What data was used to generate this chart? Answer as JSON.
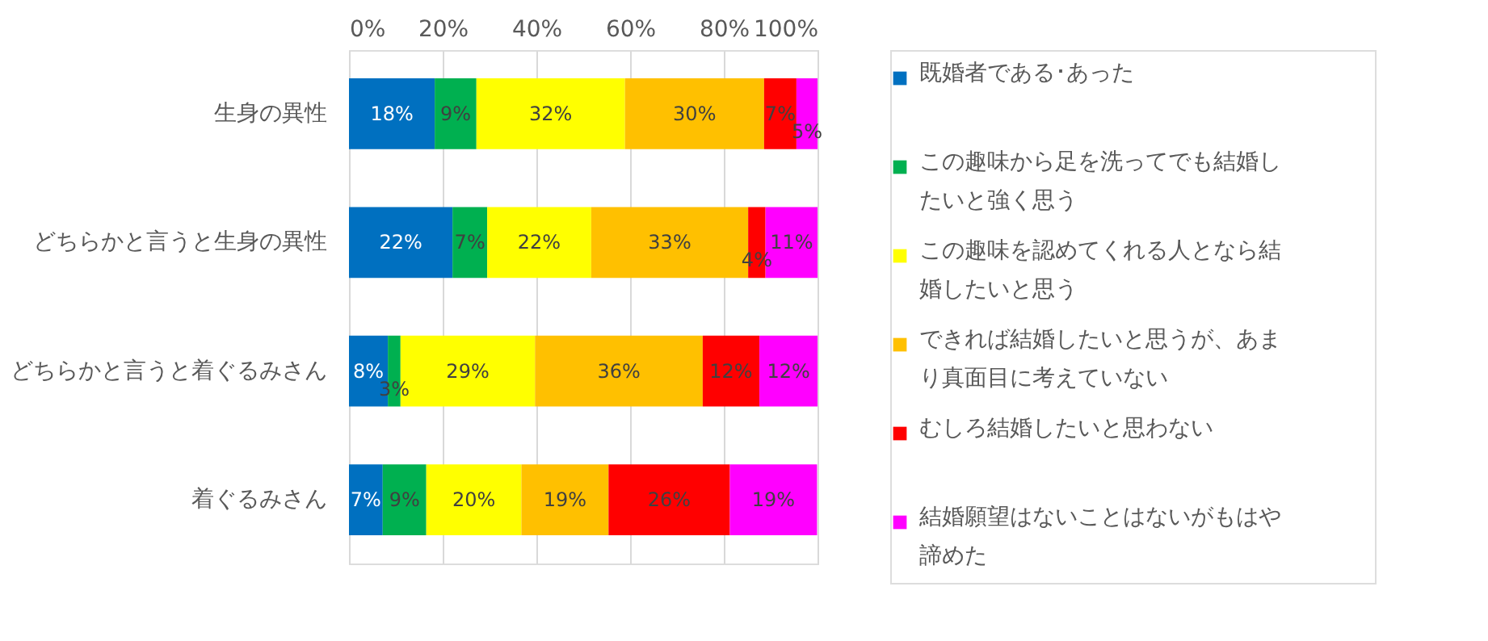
{
  "chart_data": {
    "type": "bar",
    "orientation": "horizontal",
    "stacked": true,
    "categories": [
      "生身の異性",
      "どちらかと言うと生身の異性",
      "どちらかと言うと着ぐるみさん",
      "着ぐるみさん"
    ],
    "series": [
      {
        "name": "既婚者である･あった",
        "color": "#0070c0",
        "values": [
          18.3,
          22.1,
          8.3,
          7.2
        ],
        "value_labels": [
          "18%",
          "22%",
          "8%",
          "7%"
        ]
      },
      {
        "name": "この趣味から足を洗ってでも結婚したいと強く思う",
        "color": "#00b050",
        "values": [
          8.9,
          7.4,
          2.7,
          9.3
        ],
        "value_labels": [
          "9%",
          "7%",
          "3%",
          "9%"
        ]
      },
      {
        "name": "この趣味を認めてくれる人となら結婚したいと思う",
        "color": "#ffff00",
        "values": [
          31.7,
          22.2,
          28.7,
          20.3
        ],
        "value_labels": [
          "32%",
          "22%",
          "29%",
          "20%"
        ]
      },
      {
        "name": "できれば結婚したいと思うが、あまり真面目に考えていない",
        "color": "#ffc000",
        "values": [
          29.7,
          33.5,
          35.8,
          18.6
        ],
        "value_labels": [
          "30%",
          "33%",
          "36%",
          "19%"
        ]
      },
      {
        "name": "むしろ結婚したいと思わない",
        "color": "#ff0000",
        "values": [
          6.9,
          3.7,
          12.1,
          25.9
        ],
        "value_labels": [
          "7%",
          "4%",
          "12%",
          "26%"
        ]
      },
      {
        "name": "結婚願望はないことはないがもはや諦めた",
        "color": "#ff00ff",
        "values": [
          4.5,
          11.1,
          12.4,
          18.6
        ],
        "value_labels": [
          "5%",
          "11%",
          "12%",
          "19%"
        ]
      }
    ],
    "xlim": [
      0,
      100
    ],
    "xticks": [
      {
        "value": 0,
        "label": "0%"
      },
      {
        "value": 20,
        "label": "20%"
      },
      {
        "value": 40,
        "label": "40%"
      },
      {
        "value": 60,
        "label": "60%"
      },
      {
        "value": 80,
        "label": "80%"
      },
      {
        "value": 100,
        "label": "100%"
      }
    ],
    "grid": "x",
    "legend": "right"
  }
}
